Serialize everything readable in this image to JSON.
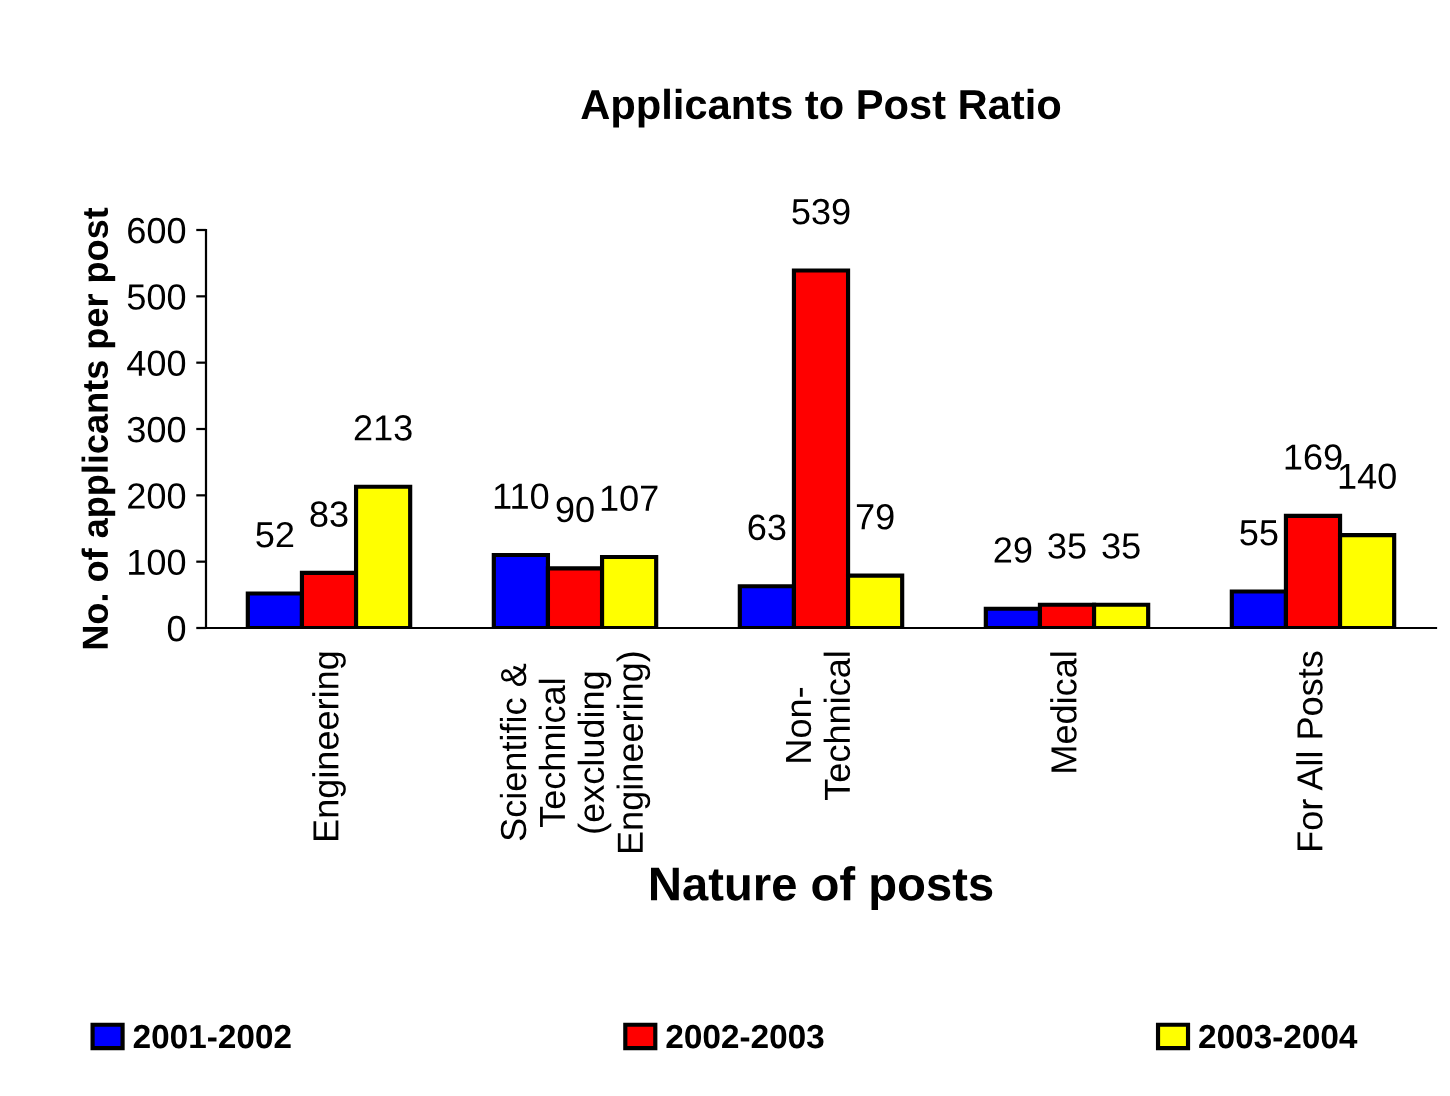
{
  "chart_data": {
    "type": "bar",
    "title": "Applicants to Post Ratio",
    "xlabel": "Nature of posts",
    "ylabel": "No. of applicants per post",
    "categories": [
      "Engineering",
      "Scientific &\nTechnical\n(excluding\nEngineering)",
      "Non-\nTechnical",
      "Medical",
      "For All Posts"
    ],
    "series": [
      {
        "name": "2001-2002",
        "color": "#0000ff",
        "values": [
          52,
          110,
          63,
          29,
          55
        ]
      },
      {
        "name": "2002-2003",
        "color": "#ff0000",
        "values": [
          83,
          90,
          539,
          35,
          169
        ]
      },
      {
        "name": "2003-2004",
        "color": "#ffff00",
        "values": [
          213,
          107,
          79,
          35,
          140
        ]
      }
    ],
    "ylim": [
      0,
      600
    ],
    "yticks": [
      0,
      100,
      200,
      300,
      400,
      500,
      600
    ],
    "grid": false,
    "legend": "bottom",
    "data_labels": true
  }
}
